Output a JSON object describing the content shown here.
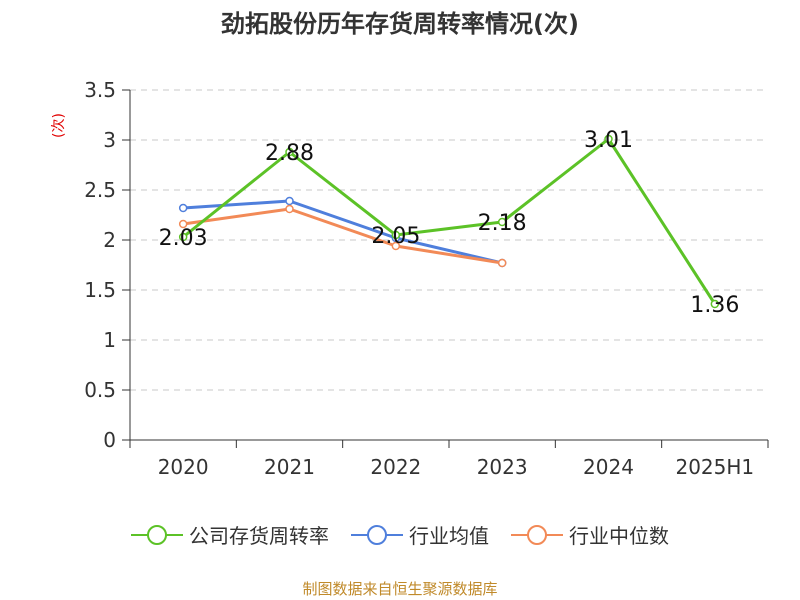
{
  "chart_data": {
    "type": "line",
    "title": "劲拓股份历年存货周转率情况(次)",
    "ylabel": "(次)",
    "xlabel": "",
    "categories": [
      "2020",
      "2021",
      "2022",
      "2023",
      "2024",
      "2025H1"
    ],
    "ylim": [
      0,
      3.5
    ],
    "yticks": [
      "0",
      "0.5",
      "1",
      "1.5",
      "2",
      "2.5",
      "3",
      "3.5"
    ],
    "grid": true,
    "legend_position": "bottom",
    "series": [
      {
        "name": "公司存货周转率",
        "color": "#5cc227",
        "values": [
          2.03,
          2.88,
          2.05,
          2.18,
          3.01,
          1.36
        ],
        "labels": [
          "2.03",
          "2.88",
          "2.05",
          "2.18",
          "3.01",
          "1.36"
        ]
      },
      {
        "name": "行业均值",
        "color": "#4f7fdc",
        "values": [
          2.32,
          2.39,
          2.02,
          1.77,
          null,
          null
        ]
      },
      {
        "name": "行业中位数",
        "color": "#f28a57",
        "values": [
          2.16,
          2.31,
          1.94,
          1.77,
          null,
          null
        ]
      }
    ]
  },
  "source": "制图数据来自恒生聚源数据库"
}
